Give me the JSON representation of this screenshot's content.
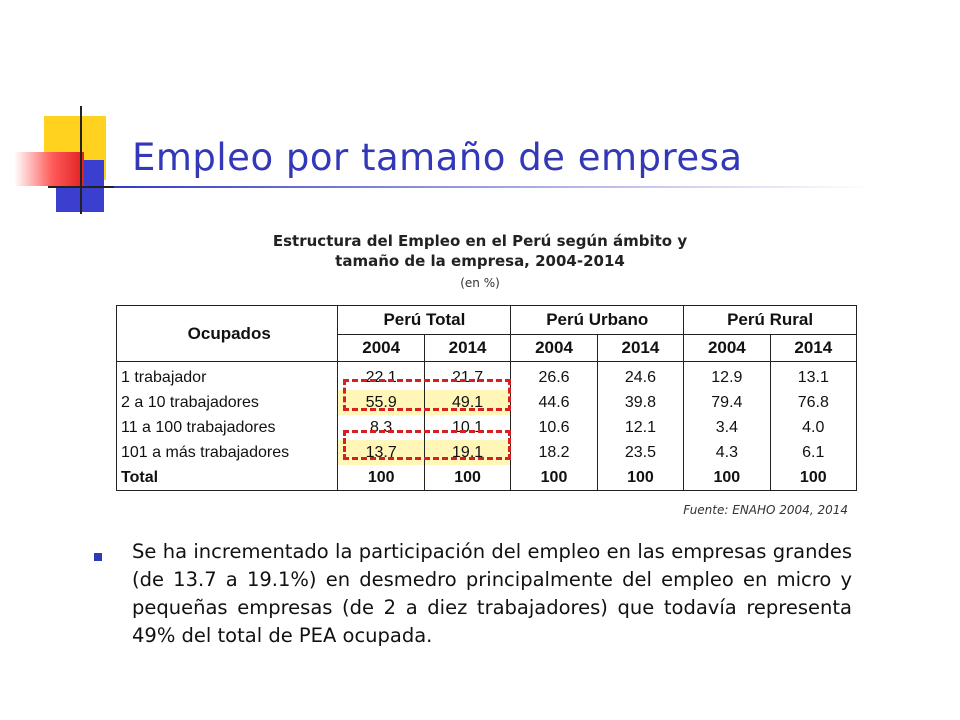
{
  "slide": {
    "title": "Empleo por tamaño de empresa"
  },
  "table": {
    "title_line1": "Estructura del Empleo en el Perú según ámbito y",
    "title_line2": "tamaño de la empresa, 2004-2014",
    "unit": "(en %)",
    "row_header": "Ocupados",
    "groups": [
      "Perú Total",
      "Perú Urbano",
      "Perú Rural"
    ],
    "years": [
      "2004",
      "2014",
      "2004",
      "2014",
      "2004",
      "2014"
    ],
    "rows": [
      {
        "label": "1 trabajador",
        "values": [
          "22.1",
          "21.7",
          "26.6",
          "24.6",
          "12.9",
          "13.1"
        ]
      },
      {
        "label": "2 a 10 trabajadores",
        "values": [
          "55.9",
          "49.1",
          "44.6",
          "39.8",
          "79.4",
          "76.8"
        ]
      },
      {
        "label": "11 a 100 trabajadores",
        "values": [
          "8.3",
          "10.1",
          "10.6",
          "12.1",
          "3.4",
          "4.0"
        ]
      },
      {
        "label": "101 a más trabajadores",
        "values": [
          "13.7",
          "19.1",
          "18.2",
          "23.5",
          "4.3",
          "6.1"
        ]
      },
      {
        "label": "Total",
        "values": [
          "100",
          "100",
          "100",
          "100",
          "100",
          "100"
        ]
      }
    ],
    "highlight_color": "#fff6b8",
    "dash_color": "#d42020"
  },
  "source": "Fuente: ENAHO 2004, 2014",
  "bullet": {
    "text": "Se ha incrementado la participación del empleo en las empresas grandes (de 13.7 a 19.1%) en desmedro principalmente del empleo en micro y pequeñas empresas (de 2 a diez trabajadores) que todavía representa 49% del total de PEA ocupada."
  },
  "colors": {
    "title": "#3338b8",
    "deco_yellow": "#ffd21f",
    "deco_blue": "#3b3fd0",
    "deco_red": "#e02020"
  }
}
